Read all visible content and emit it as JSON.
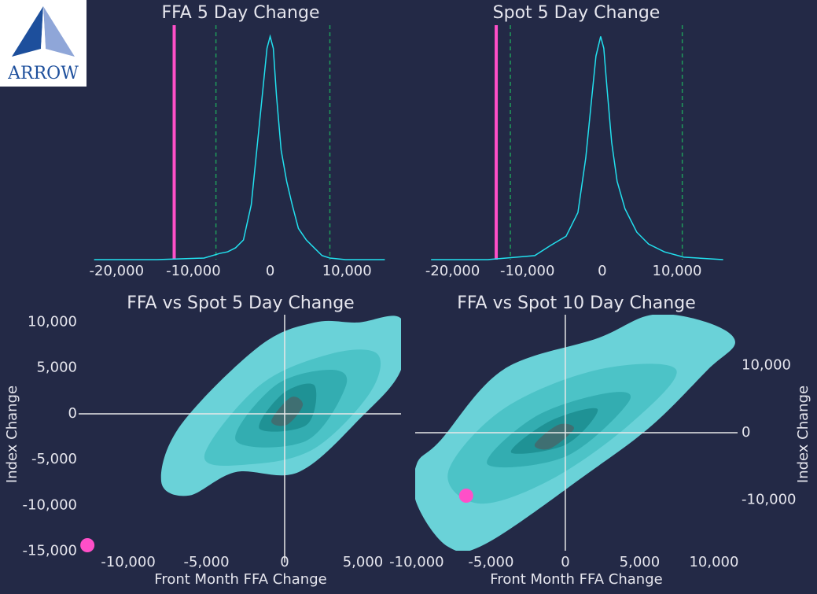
{
  "logo": {
    "text": "ARROW"
  },
  "chart_data": [
    {
      "type": "line",
      "title": "FFA 5 Day Change",
      "color": "#22e0ee",
      "x": [
        -22930,
        -14740,
        -8600,
        -6550,
        -5530,
        -4500,
        -3480,
        -2460,
        -1640,
        -920,
        -410,
        0,
        410,
        820,
        1430,
        2150,
        2870,
        3680,
        4710,
        5730,
        6760,
        7780,
        9830,
        14940
      ],
      "values": [
        0,
        0,
        0.007,
        0.028,
        0.035,
        0.053,
        0.088,
        0.246,
        0.526,
        0.772,
        0.947,
        1.0,
        0.947,
        0.737,
        0.491,
        0.351,
        0.246,
        0.14,
        0.088,
        0.053,
        0.018,
        0.007,
        0,
        0
      ],
      "xlim": [
        -23000,
        15000
      ],
      "ylim": [
        0,
        1.04
      ],
      "xticks": [
        {
          "value": -20000,
          "label": "-20,000"
        },
        {
          "value": -10000,
          "label": "-10,000"
        },
        0,
        {
          "value": 10000,
          "label": "10,000"
        }
      ],
      "vlines": [
        {
          "value": -12500,
          "color": "#ff4fc8",
          "style": "solid"
        },
        {
          "value": -7060,
          "color": "#1f9a5a",
          "style": "dashed"
        },
        {
          "value": 7780,
          "color": "#1f9a5a",
          "style": "dashed"
        }
      ]
    },
    {
      "type": "line",
      "title": "Spot 5 Day Change",
      "color": "#22e0ee",
      "x": [
        -22880,
        -15320,
        -9020,
        -6930,
        -4830,
        -3250,
        -2200,
        -1470,
        -840,
        -210,
        210,
        630,
        1260,
        1990,
        3040,
        4620,
        6190,
        8290,
        10910,
        16160
      ],
      "values": [
        0,
        0,
        0.018,
        0.063,
        0.105,
        0.211,
        0.456,
        0.702,
        0.912,
        1.0,
        0.947,
        0.772,
        0.526,
        0.351,
        0.228,
        0.123,
        0.07,
        0.035,
        0.011,
        0
      ],
      "xlim": [
        -22900,
        16200
      ],
      "ylim": [
        0,
        1.04
      ],
      "xticks": [
        {
          "value": -20000,
          "label": "-20,000"
        },
        {
          "value": -10000,
          "label": "-10,000"
        },
        0,
        {
          "value": 10000,
          "label": "10,000"
        }
      ],
      "vlines": [
        {
          "value": -14170,
          "color": "#ff4fc8",
          "style": "solid"
        },
        {
          "value": -12280,
          "color": "#1f9a5a",
          "style": "dashed"
        },
        {
          "value": 10700,
          "color": "#1f9a5a",
          "style": "dashed"
        }
      ]
    },
    {
      "type": "contour",
      "title": "FFA vs Spot 5 Day Change",
      "xlabel": "Front Month FFA Change",
      "ylabel": "Index Change",
      "y_axis_position": "left",
      "zero_lines": true,
      "xlim": [
        -13170,
        7440
      ],
      "ylim": [
        -16240,
        10820
      ],
      "xticks": [
        {
          "value": -10000,
          "label": "-10,000"
        },
        {
          "value": -5000,
          "label": "-5,000"
        },
        0,
        {
          "value": 5000,
          "label": "5,000"
        }
      ],
      "yticks": [
        {
          "value": 10000,
          "label": "10,000"
        },
        {
          "value": 5000,
          "label": "5,000"
        },
        0,
        {
          "value": -5000,
          "label": "-5,000"
        },
        {
          "value": -10000,
          "label": "-10,000"
        },
        {
          "value": -15000,
          "label": "-15,000"
        }
      ],
      "contours": [
        {
          "color": "#6ad2d8",
          "x": [
            -7890,
            -6630,
            -1610,
            1910,
            4670,
            7440,
            7440,
            4920,
            900,
            -3120,
            -6130
          ],
          "y": [
            -7390,
            -1200,
            7390,
            9970,
            9970,
            10400,
            4810,
            -340,
            -6360,
            -6360,
            -8930
          ]
        },
        {
          "color": "#4cc3c7",
          "x": [
            -5130,
            -1610,
            2910,
            5930,
            5430,
            1910,
            -2110
          ],
          "y": [
            -4640,
            3090,
            6530,
            6530,
            2230,
            -3780,
            -5500
          ]
        },
        {
          "color": "#33adb1",
          "x": [
            -3120,
            -600,
            2910,
            3920,
            1410
          ],
          "y": [
            -2920,
            3090,
            4810,
            3090,
            -2920
          ]
        },
        {
          "color": "#1f9295",
          "x": [
            -1610,
            -100,
            1910,
            1410
          ],
          "y": [
            -1630,
            2230,
            3090,
            -1200
          ]
        },
        {
          "color": "#3f6f72",
          "x": [
            -850,
            400,
            1160,
            150
          ],
          "y": [
            -770,
            1800,
            950,
            -1200
          ]
        }
      ],
      "points": {
        "x": [
          -12610
        ],
        "y": [
          -14350
        ],
        "color": "#ff4fc8"
      }
    },
    {
      "type": "contour",
      "title": "FFA vs Spot 10 Day Change",
      "xlabel": "Front Month FFA Change",
      "ylabel": "Index Change",
      "y_axis_position": "right",
      "zero_lines": true,
      "xlim": [
        -10100,
        11590
      ],
      "ylim": [
        -17540,
        17540
      ],
      "xticks": [
        {
          "value": -10000,
          "label": "-10,000"
        },
        {
          "value": -5000,
          "label": "-5,000"
        },
        0,
        {
          "value": 5000,
          "label": "5,000"
        },
        {
          "value": 10000,
          "label": "10,000"
        }
      ],
      "yticks": [
        {
          "value": 10000,
          "label": "10,000"
        },
        0,
        {
          "value": -10000,
          "label": "-10,000"
        }
      ],
      "contours": [
        {
          "color": "#6ad2d8",
          "x": [
            -10000,
            -8410,
            -4180,
            2170,
            5870,
            9580,
            11430,
            9580,
            5870,
            1640,
            -5240,
            -7880,
            -10000
          ],
          "y": [
            -4680,
            -1170,
            9360,
            14040,
            17540,
            16370,
            13450,
            9360,
            1170,
            -5850,
            -16370,
            -16960,
            -10530
          ]
        },
        {
          "color": "#4cc3c7",
          "x": [
            -7880,
            -4180,
            2170,
            7460,
            4290,
            -1010,
            -5770
          ],
          "y": [
            -5850,
            3510,
            9360,
            9360,
            1170,
            -7020,
            -10530
          ]
        },
        {
          "color": "#33adb1",
          "x": [
            -5240,
            -2060,
            2700,
            4290,
            50
          ],
          "y": [
            -4680,
            2340,
            5850,
            4680,
            -3510
          ]
        },
        {
          "color": "#1f9295",
          "x": [
            -3650,
            -1010,
            2170,
            50
          ],
          "y": [
            -2920,
            1750,
            3510,
            -1750
          ]
        },
        {
          "color": "#3f6f72",
          "x": [
            -2060,
            -480,
            580,
            -1010
          ],
          "y": [
            -1750,
            1170,
            580,
            -2340
          ]
        }
      ],
      "points": {
        "x": [
          -6670
        ],
        "y": [
          -9360
        ],
        "color": "#ff4fc8"
      }
    }
  ]
}
